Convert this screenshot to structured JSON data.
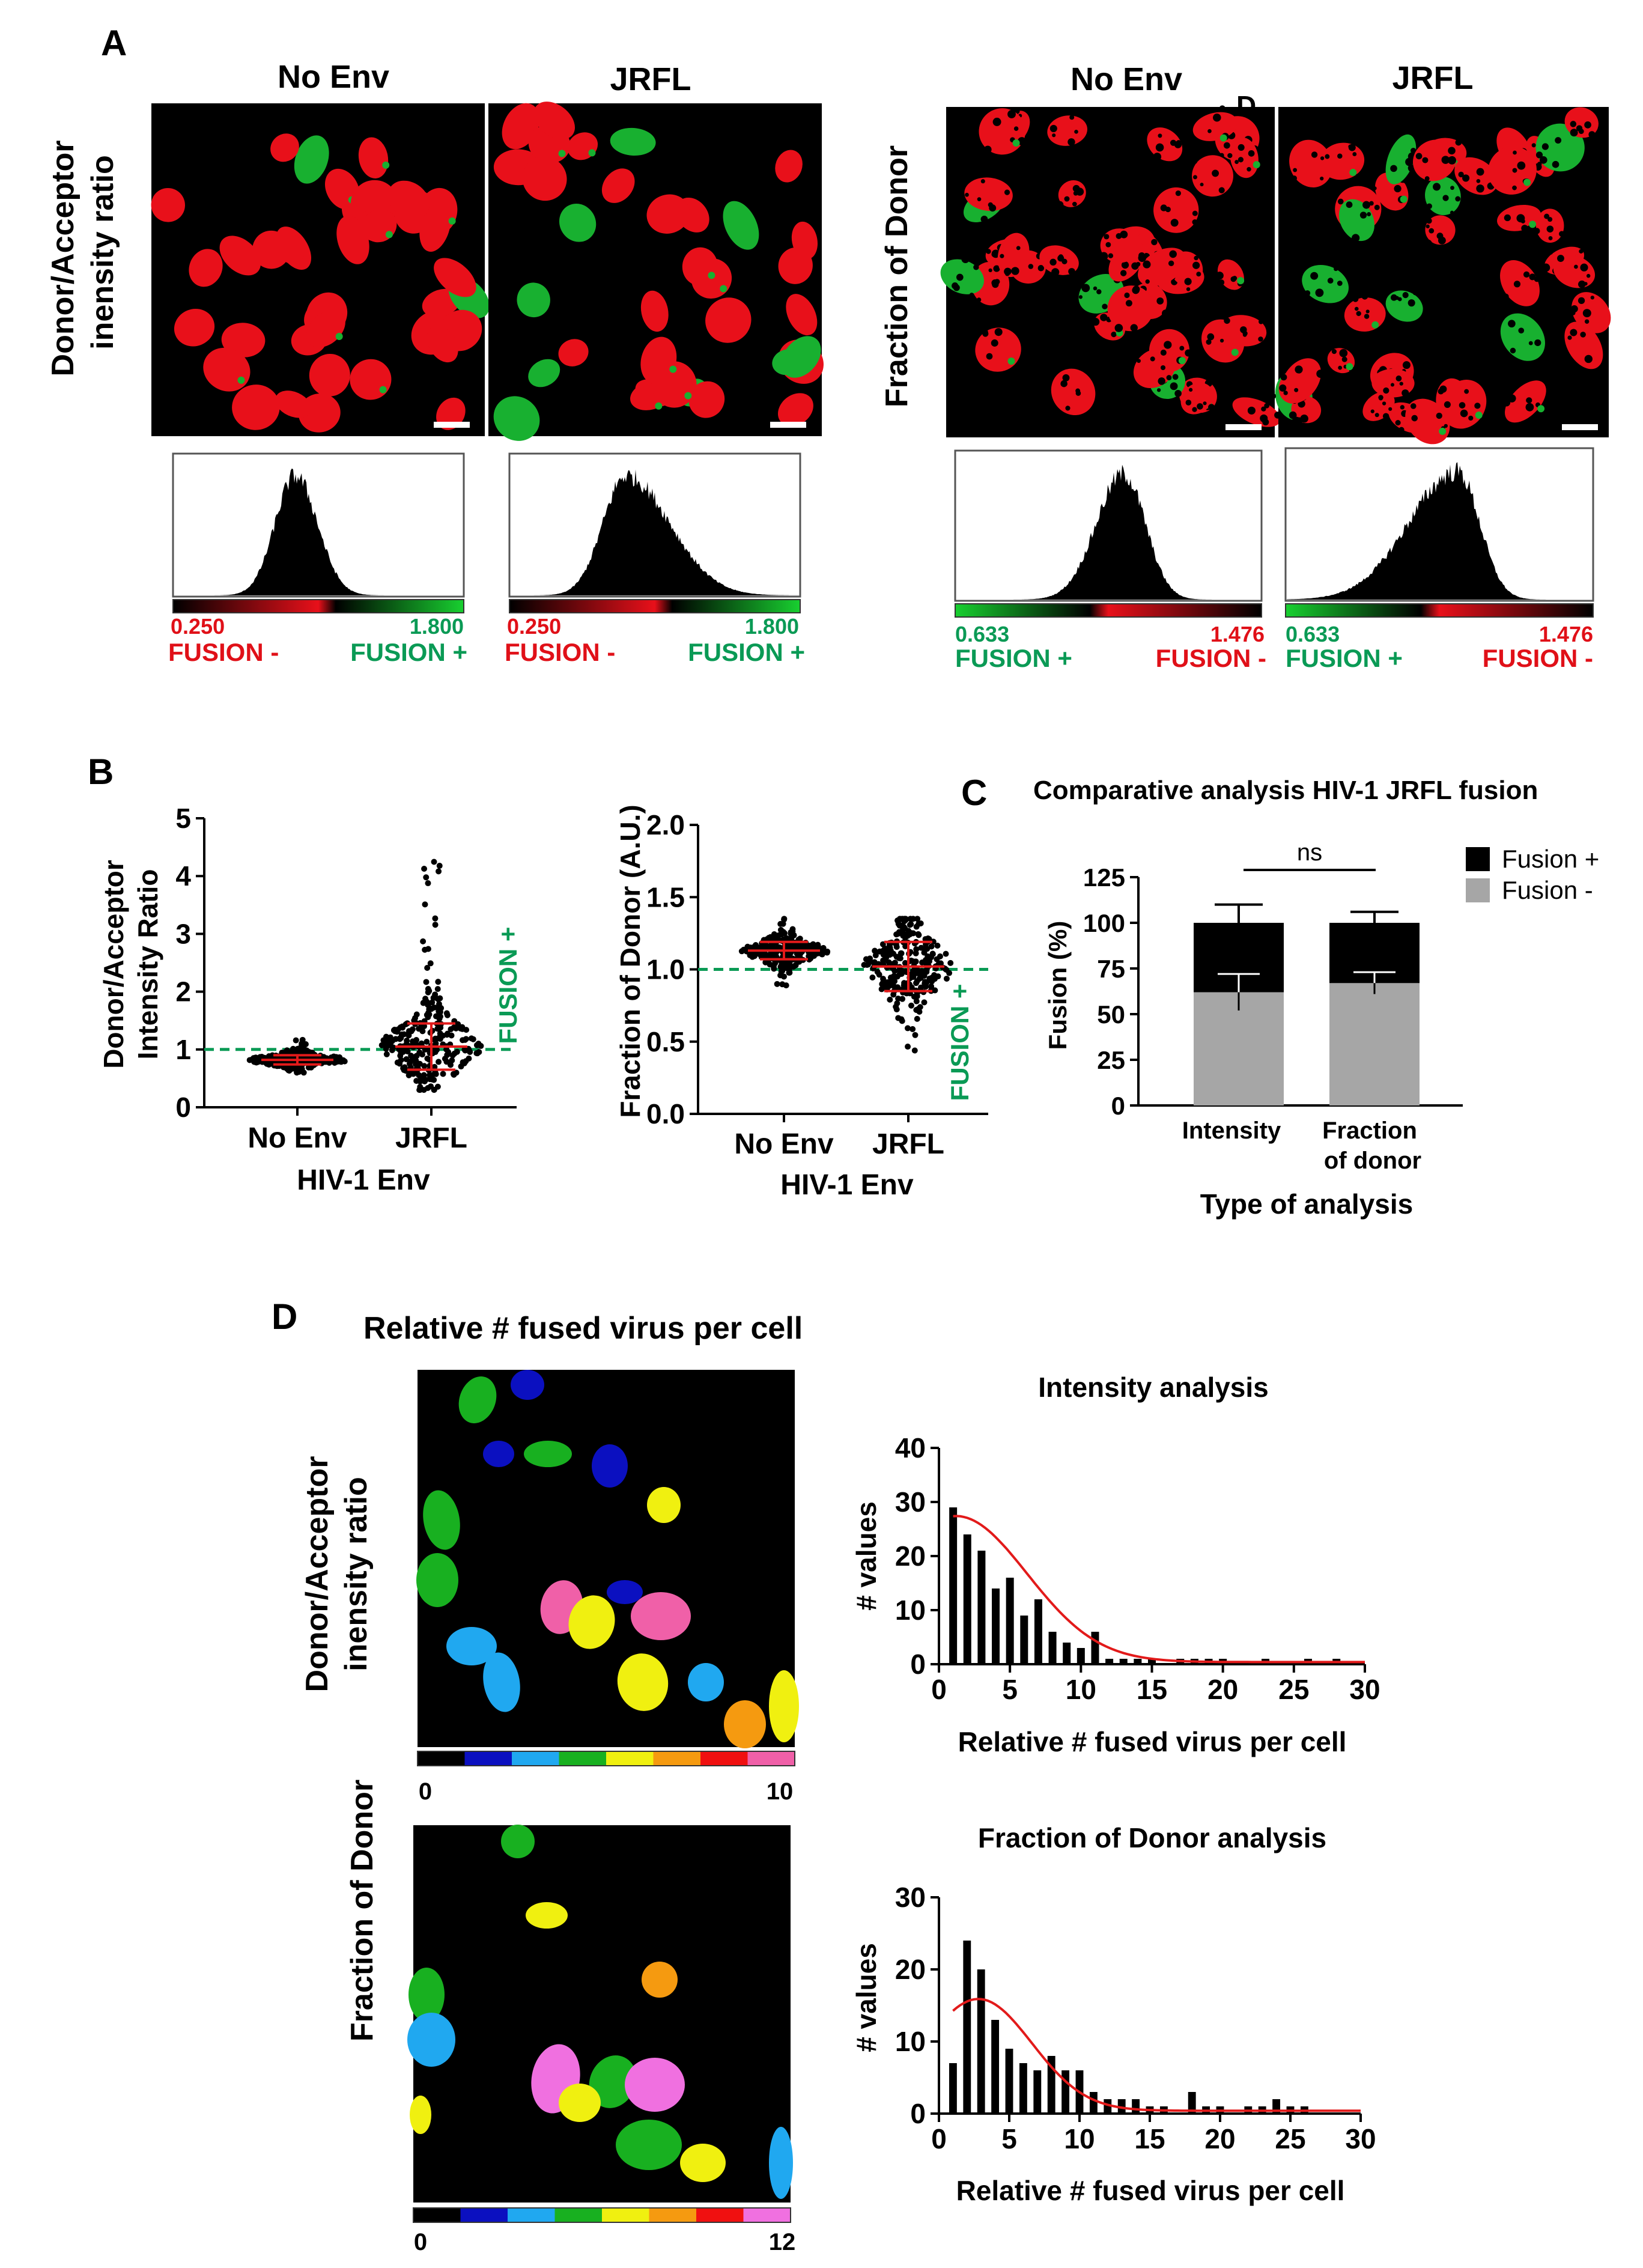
{
  "panel_labels": {
    "a": "A",
    "b": "B",
    "c": "C",
    "d": "D",
    "stray_d": "D"
  },
  "panel_a": {
    "left": {
      "row_label_line1": "Donor/Acceptor",
      "row_label_line2": "inensity ratio",
      "col1": "No Env",
      "col2": "JRFL",
      "hist1": {
        "min": "0.250",
        "max": "1.800",
        "neg": "FUSION -",
        "pos": "FUSION +"
      },
      "hist2": {
        "min": "0.250",
        "max": "1.800",
        "neg": "FUSION -",
        "pos": "FUSION +"
      }
    },
    "right": {
      "row_label": "Fraction of Donor",
      "col1": "No Env",
      "col2": "JRFL",
      "hist1": {
        "min": "0.633",
        "max": "1.476",
        "pos": "FUSION +",
        "neg": "FUSION -"
      },
      "hist2": {
        "min": "0.633",
        "max": "1.476",
        "pos": "FUSION +",
        "neg": "FUSION -"
      }
    }
  },
  "colors": {
    "red": "#e8101a",
    "green": "#18b030",
    "fusion_green": "#0a9a55",
    "fusion_red": "#e01018",
    "gray": "#a6a6a6",
    "line_red": "#e21a1a"
  },
  "chart_data": [
    {
      "id": "b1",
      "type": "scatter",
      "ylabel_line1": "Donor/Acceptor",
      "ylabel_line2": "Intensity Ratio",
      "xlabel": "HIV-1 Env",
      "categories": [
        "No Env",
        "JRFL"
      ],
      "ylim": [
        0,
        5
      ],
      "yticks": [
        "0",
        "1",
        "2",
        "3",
        "4",
        "5"
      ],
      "threshold": 1.0,
      "threshold_label": "FUSION +",
      "series": [
        {
          "name": "No Env",
          "mean": 0.82,
          "sd": 0.08,
          "min": 0.6,
          "max": 1.2
        },
        {
          "name": "JRFL",
          "mean": 1.05,
          "sd": 0.4,
          "min": 0.3,
          "max": 4.3
        }
      ]
    },
    {
      "id": "b2",
      "type": "scatter",
      "ylabel": "Fraction of Donor (A.U.)",
      "xlabel": "HIV-1 Env",
      "categories": [
        "No Env",
        "JRFL"
      ],
      "ylim": [
        0,
        2.0
      ],
      "yticks": [
        "0.0",
        "0.5",
        "1.0",
        "1.5",
        "2.0"
      ],
      "threshold": 1.0,
      "threshold_label": "FUSION +",
      "series": [
        {
          "name": "No Env",
          "mean": 1.13,
          "sd": 0.06,
          "min": 0.88,
          "max": 1.36
        },
        {
          "name": "JRFL",
          "mean": 1.02,
          "sd": 0.17,
          "min": 0.35,
          "max": 1.35
        }
      ]
    },
    {
      "id": "c",
      "type": "bar",
      "title": "Comparative analysis HIV-1 JRFL fusion",
      "ylabel": "Fusion (%)",
      "xlabel": "Type of analysis",
      "categories": [
        "Intensity",
        "Fraction of donor"
      ],
      "category_lines": [
        [
          "Intensity"
        ],
        [
          "Fraction",
          "of donor"
        ]
      ],
      "ylim": [
        0,
        125
      ],
      "yticks": [
        "0",
        "25",
        "50",
        "75",
        "100",
        "125"
      ],
      "series": [
        {
          "name": "Fusion -",
          "values": [
            62,
            67
          ],
          "err": [
            10,
            6
          ]
        },
        {
          "name": "Fusion +",
          "values": [
            38,
            33
          ],
          "err": [
            10,
            6
          ]
        }
      ],
      "significance": "ns",
      "legend": [
        "Fusion +",
        "Fusion -"
      ]
    },
    {
      "id": "d1",
      "type": "bar",
      "title": "Intensity analysis",
      "xlabel": "Relative # fused virus per cell",
      "ylabel": "# values",
      "xlim": [
        0,
        30
      ],
      "ylim": [
        0,
        40
      ],
      "xticks": [
        "0",
        "5",
        "10",
        "15",
        "20",
        "25",
        "30"
      ],
      "yticks": [
        "0",
        "10",
        "20",
        "30",
        "40"
      ],
      "x": [
        1,
        2,
        3,
        4,
        5,
        6,
        7,
        8,
        9,
        10,
        11,
        12,
        13,
        14,
        15,
        16,
        17,
        18,
        19,
        20,
        21,
        22,
        23,
        24,
        25,
        26,
        27,
        28,
        29
      ],
      "values": [
        29,
        24,
        21,
        14,
        16,
        9,
        12,
        6,
        4,
        3,
        6,
        1,
        1,
        1,
        1,
        0,
        1,
        1,
        1,
        1,
        0,
        0,
        1,
        0,
        0,
        1,
        0,
        1,
        0
      ],
      "fit_peak": 27,
      "fit_center": 1.2,
      "fit_sigma": 5.0
    },
    {
      "id": "d2",
      "type": "bar",
      "title": "Fraction of Donor analysis",
      "xlabel": "Relative # fused virus per cell",
      "ylabel": "# values",
      "xlim": [
        0,
        30
      ],
      "ylim": [
        0,
        30
      ],
      "xticks": [
        "0",
        "5",
        "10",
        "15",
        "20",
        "25",
        "30"
      ],
      "yticks": [
        "0",
        "10",
        "20",
        "30"
      ],
      "x": [
        1,
        2,
        3,
        4,
        5,
        6,
        7,
        8,
        9,
        10,
        11,
        12,
        13,
        14,
        15,
        16,
        17,
        18,
        19,
        20,
        21,
        22,
        23,
        24,
        25,
        26,
        27
      ],
      "values": [
        7,
        24,
        20,
        13,
        9,
        7,
        6,
        8,
        6,
        6,
        3,
        2,
        2,
        2,
        1,
        1,
        0,
        3,
        1,
        1,
        0,
        1,
        1,
        2,
        1,
        1,
        0
      ],
      "fit_peak": 15.5,
      "fit_center": 2.8,
      "fit_sigma": 3.8
    }
  ],
  "panel_d": {
    "title": "Relative # fused virus per cell",
    "row1_label_line1": "Donor/Acceptor",
    "row1_label_line2": "inensity ratio",
    "row2_label": "Fraction of Donor",
    "cb1_min": "0",
    "cb1_max": "10",
    "cb2_min": "0",
    "cb2_max": "12"
  }
}
